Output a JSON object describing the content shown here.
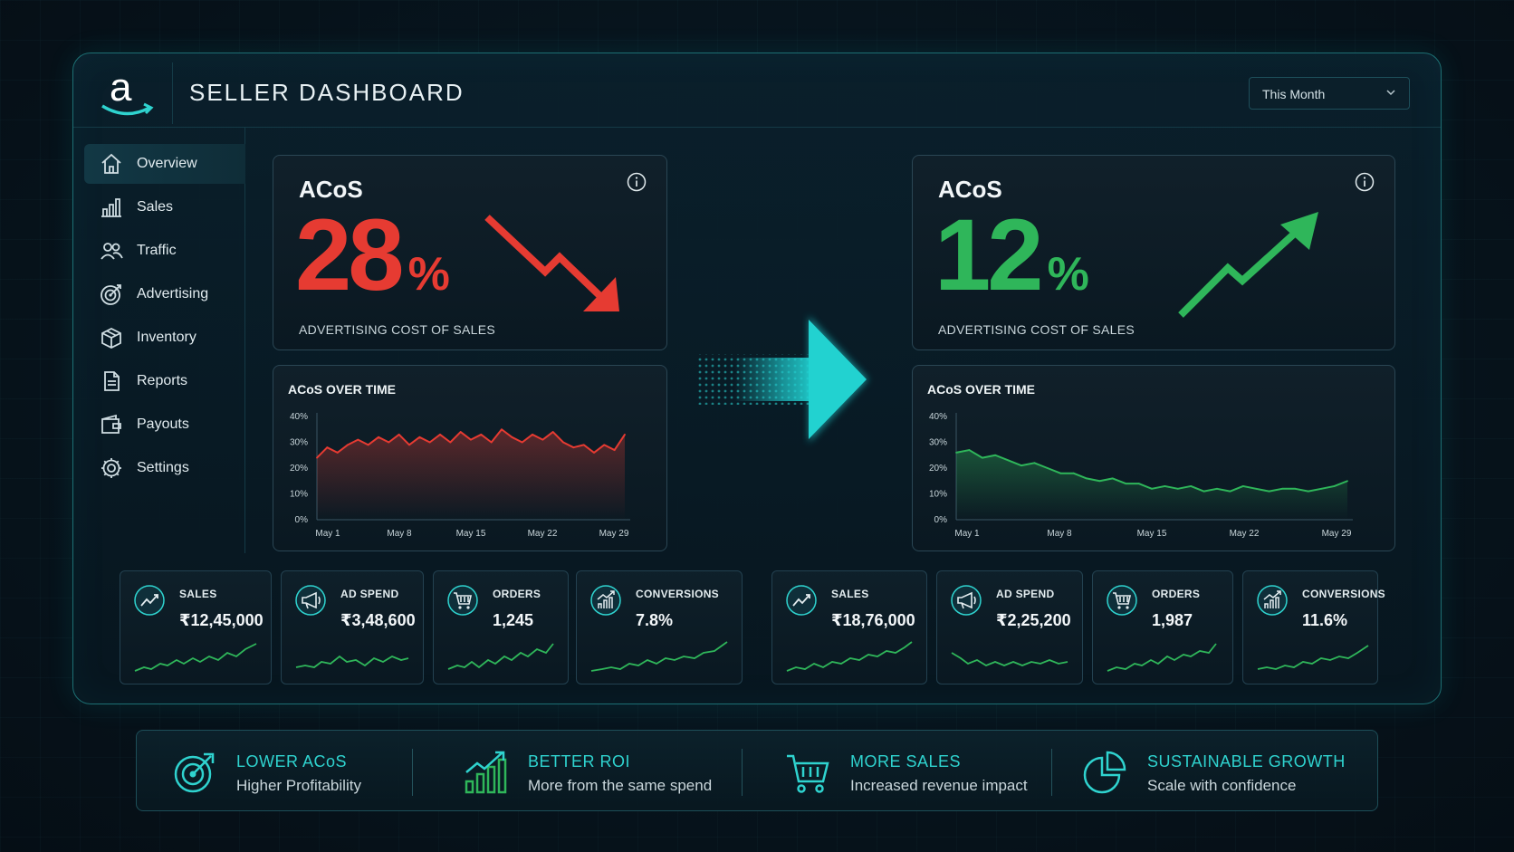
{
  "header": {
    "title": "SELLER DASHBOARD",
    "logo_letter": "a",
    "period": "This Month"
  },
  "sidebar": {
    "items": [
      {
        "label": "Overview",
        "icon": "home-icon",
        "active": true
      },
      {
        "label": "Sales",
        "icon": "bar-chart-icon"
      },
      {
        "label": "Traffic",
        "icon": "users-icon"
      },
      {
        "label": "Advertising",
        "icon": "target-icon"
      },
      {
        "label": "Inventory",
        "icon": "box-icon"
      },
      {
        "label": "Reports",
        "icon": "document-icon"
      },
      {
        "label": "Payouts",
        "icon": "wallet-icon"
      },
      {
        "label": "Settings",
        "icon": "gear-icon"
      }
    ]
  },
  "before": {
    "acos_label": "ACoS",
    "acos_value": "28",
    "acos_unit": "%",
    "acos_sub": "ADVERTISING COST OF SALES",
    "color": "#e63b32",
    "chart_title": "ACoS OVER TIME",
    "kpis": [
      {
        "label": "SALES",
        "value": "₹12,45,000",
        "icon": "trend-up-icon"
      },
      {
        "label": "AD SPEND",
        "value": "₹3,48,600",
        "icon": "megaphone-icon"
      },
      {
        "label": "ORDERS",
        "value": "1,245",
        "icon": "cart-icon"
      },
      {
        "label": "CONVERSIONS",
        "value": "7.8%",
        "icon": "growth-bars-icon"
      }
    ]
  },
  "after": {
    "acos_label": "ACoS",
    "acos_value": "12",
    "acos_unit": "%",
    "acos_sub": "ADVERTISING COST OF SALES",
    "color": "#2fb65a",
    "chart_title": "ACoS OVER TIME",
    "kpis": [
      {
        "label": "SALES",
        "value": "₹18,76,000",
        "icon": "trend-up-icon"
      },
      {
        "label": "AD SPEND",
        "value": "₹2,25,200",
        "icon": "megaphone-icon"
      },
      {
        "label": "ORDERS",
        "value": "1,987",
        "icon": "cart-icon"
      },
      {
        "label": "CONVERSIONS",
        "value": "11.6%",
        "icon": "growth-bars-icon"
      }
    ]
  },
  "benefits": [
    {
      "title": "LOWER ACoS",
      "sub": "Higher Profitability",
      "icon": "target-icon"
    },
    {
      "title": "BETTER ROI",
      "sub": "More from the same spend",
      "icon": "growth-bars-icon"
    },
    {
      "title": "MORE SALES",
      "sub": "Increased revenue impact",
      "icon": "cart-icon"
    },
    {
      "title": "SUSTAINABLE GROWTH",
      "sub": "Scale with confidence",
      "icon": "pie-chart-icon"
    }
  ],
  "accent_color": "#2fd3cf",
  "chart_data": [
    {
      "type": "line",
      "title": "ACoS OVER TIME",
      "x_ticks": [
        "May 1",
        "May 8",
        "May 15",
        "May 22",
        "May 29"
      ],
      "y_ticks": [
        "0%",
        "10%",
        "20%",
        "30%",
        "40%"
      ],
      "ylim": [
        0,
        40
      ],
      "x_range": [
        1,
        31
      ],
      "series": [
        {
          "color": "#e63b32",
          "x": [
            1,
            2,
            3,
            4,
            5,
            6,
            7,
            8,
            9,
            10,
            11,
            12,
            13,
            14,
            15,
            16,
            17,
            18,
            19,
            20,
            21,
            22,
            23,
            24,
            25,
            26,
            27,
            28,
            29,
            30,
            31
          ],
          "y": [
            24,
            28,
            26,
            29,
            31,
            29,
            32,
            30,
            33,
            29,
            32,
            30,
            33,
            30,
            34,
            31,
            33,
            30,
            35,
            32,
            30,
            33,
            31,
            34,
            30,
            28,
            29,
            26,
            29,
            27,
            33
          ]
        }
      ]
    },
    {
      "type": "line",
      "title": "ACoS OVER TIME",
      "x_ticks": [
        "May 1",
        "May 8",
        "May 15",
        "May 22",
        "May 29"
      ],
      "y_ticks": [
        "0%",
        "10%",
        "20%",
        "30%",
        "40%"
      ],
      "ylim": [
        0,
        40
      ],
      "x_range": [
        1,
        31
      ],
      "series": [
        {
          "color": "#2fb65a",
          "x": [
            1,
            2,
            3,
            4,
            5,
            6,
            7,
            8,
            9,
            10,
            11,
            12,
            13,
            14,
            15,
            16,
            17,
            18,
            19,
            20,
            21,
            22,
            23,
            24,
            25,
            26,
            27,
            28,
            29,
            30,
            31
          ],
          "y": [
            26,
            27,
            24,
            25,
            23,
            21,
            22,
            20,
            18,
            18,
            16,
            15,
            16,
            14,
            14,
            12,
            13,
            12,
            13,
            11,
            12,
            11,
            13,
            12,
            11,
            12,
            12,
            11,
            12,
            13,
            15
          ]
        }
      ]
    }
  ]
}
